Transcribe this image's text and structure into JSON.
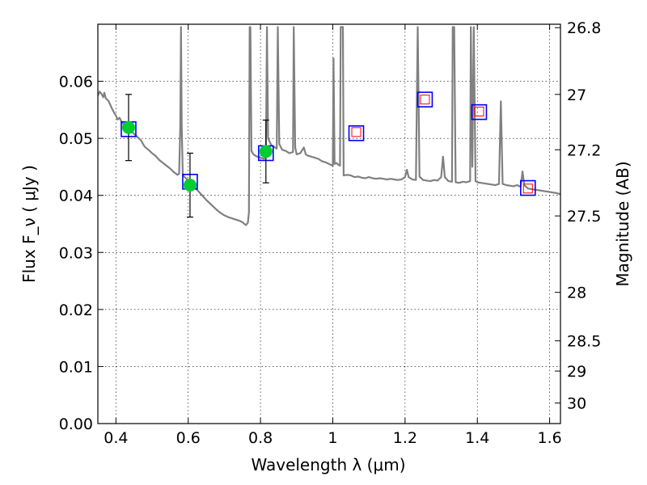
{
  "chart_data": {
    "type": "scatter",
    "xlabel": "Wavelength  λ (μm)",
    "ylabel": "Flux  F_ν  ( μJy )",
    "ylabel_right": "Magnitude (AB)",
    "xlim": [
      0.35,
      1.63
    ],
    "ylim": [
      0.0,
      0.07
    ],
    "grid": true,
    "x_ticks": [
      0.4,
      0.6,
      0.8,
      1.0,
      1.2,
      1.4,
      1.6
    ],
    "x_tick_labels": [
      "0.4",
      "0.6",
      "0.8",
      "1",
      "1.2",
      "1.4",
      "1.6"
    ],
    "y_ticks": [
      0.0,
      0.01,
      0.02,
      0.03,
      0.04,
      0.05,
      0.06
    ],
    "y_tick_labels": [
      "0.00",
      "0.01",
      "0.02",
      "0.03",
      "0.04",
      "0.05",
      "0.06"
    ],
    "right_ticks": [
      {
        "label": "26.8",
        "flux": 0.0694
      },
      {
        "label": "27",
        "flux": 0.0577
      },
      {
        "label": "27.2",
        "flux": 0.048
      },
      {
        "label": "27.5",
        "flux": 0.0364
      },
      {
        "label": "28",
        "flux": 0.023
      },
      {
        "label": "28.5",
        "flux": 0.0145
      },
      {
        "label": "29",
        "flux": 0.0092
      },
      {
        "label": "30",
        "flux": 0.0036
      }
    ],
    "series": [
      {
        "kind": "model_spectrum",
        "color": "#808080",
        "points": [
          [
            0.35,
            0.0575
          ],
          [
            0.355,
            0.0582
          ],
          [
            0.36,
            0.0578
          ],
          [
            0.365,
            0.0572
          ],
          [
            0.368,
            0.058
          ],
          [
            0.372,
            0.057
          ],
          [
            0.376,
            0.0568
          ],
          [
            0.38,
            0.0565
          ],
          [
            0.385,
            0.0558
          ],
          [
            0.39,
            0.0551
          ],
          [
            0.395,
            0.0545
          ],
          [
            0.4,
            0.054
          ],
          [
            0.405,
            0.0533
          ],
          [
            0.41,
            0.0536
          ],
          [
            0.415,
            0.053
          ],
          [
            0.42,
            0.0525
          ],
          [
            0.43,
            0.052
          ],
          [
            0.44,
            0.0514
          ],
          [
            0.45,
            0.0508
          ],
          [
            0.46,
            0.0502
          ],
          [
            0.47,
            0.0496
          ],
          [
            0.475,
            0.049
          ],
          [
            0.48,
            0.0485
          ],
          [
            0.49,
            0.048
          ],
          [
            0.5,
            0.0474
          ],
          [
            0.51,
            0.0469
          ],
          [
            0.52,
            0.0462
          ],
          [
            0.53,
            0.0457
          ],
          [
            0.54,
            0.0452
          ],
          [
            0.55,
            0.0447
          ],
          [
            0.56,
            0.0441
          ],
          [
            0.57,
            0.0436
          ],
          [
            0.575,
            0.0438
          ],
          [
            0.578,
            0.052
          ],
          [
            0.58,
            0.0695
          ],
          [
            0.582,
            0.052
          ],
          [
            0.585,
            0.0436
          ],
          [
            0.59,
            0.0432
          ],
          [
            0.6,
            0.0426
          ],
          [
            0.61,
            0.0419
          ],
          [
            0.62,
            0.0413
          ],
          [
            0.63,
            0.0406
          ],
          [
            0.64,
            0.0399
          ],
          [
            0.65,
            0.0392
          ],
          [
            0.66,
            0.0386
          ],
          [
            0.67,
            0.038
          ],
          [
            0.68,
            0.0374
          ],
          [
            0.69,
            0.0369
          ],
          [
            0.7,
            0.0365
          ],
          [
            0.71,
            0.0362
          ],
          [
            0.72,
            0.036
          ],
          [
            0.73,
            0.0358
          ],
          [
            0.74,
            0.0356
          ],
          [
            0.75,
            0.0353
          ],
          [
            0.755,
            0.035
          ],
          [
            0.76,
            0.0348
          ],
          [
            0.765,
            0.0352
          ],
          [
            0.768,
            0.037
          ],
          [
            0.77,
            0.0695
          ],
          [
            0.772,
            0.0695
          ],
          [
            0.775,
            0.0478
          ],
          [
            0.78,
            0.0472
          ],
          [
            0.79,
            0.0468
          ],
          [
            0.8,
            0.0466
          ],
          [
            0.81,
            0.0464
          ],
          [
            0.815,
            0.0475
          ],
          [
            0.818,
            0.0695
          ],
          [
            0.821,
            0.05
          ],
          [
            0.83,
            0.0488
          ],
          [
            0.84,
            0.0484
          ],
          [
            0.845,
            0.0482
          ],
          [
            0.848,
            0.0695
          ],
          [
            0.852,
            0.049
          ],
          [
            0.86,
            0.048
          ],
          [
            0.87,
            0.0478
          ],
          [
            0.88,
            0.0474
          ],
          [
            0.89,
            0.0476
          ],
          [
            0.892,
            0.0695
          ],
          [
            0.896,
            0.0484
          ],
          [
            0.9,
            0.0472
          ],
          [
            0.91,
            0.0474
          ],
          [
            0.92,
            0.0484
          ],
          [
            0.925,
            0.0472
          ],
          [
            0.93,
            0.047
          ],
          [
            0.94,
            0.0468
          ],
          [
            0.95,
            0.0466
          ],
          [
            0.96,
            0.0464
          ],
          [
            0.97,
            0.046
          ],
          [
            0.98,
            0.0458
          ],
          [
            0.99,
            0.0455
          ],
          [
            1.0,
            0.0452
          ],
          [
            1.002,
            0.064
          ],
          [
            1.005,
            0.0455
          ],
          [
            1.01,
            0.0457
          ],
          [
            1.015,
            0.0454
          ],
          [
            1.02,
            0.0452
          ],
          [
            1.022,
            0.0695
          ],
          [
            1.026,
            0.0695
          ],
          [
            1.028,
            0.0695
          ],
          [
            1.03,
            0.0435
          ],
          [
            1.04,
            0.0436
          ],
          [
            1.05,
            0.0435
          ],
          [
            1.06,
            0.0432
          ],
          [
            1.07,
            0.0433
          ],
          [
            1.08,
            0.0431
          ],
          [
            1.09,
            0.043
          ],
          [
            1.1,
            0.0432
          ],
          [
            1.11,
            0.043
          ],
          [
            1.12,
            0.0429
          ],
          [
            1.13,
            0.043
          ],
          [
            1.14,
            0.0429
          ],
          [
            1.15,
            0.0428
          ],
          [
            1.16,
            0.0429
          ],
          [
            1.17,
            0.0428
          ],
          [
            1.18,
            0.0427
          ],
          [
            1.19,
            0.0428
          ],
          [
            1.2,
            0.0432
          ],
          [
            1.205,
            0.0445
          ],
          [
            1.21,
            0.0432
          ],
          [
            1.22,
            0.0428
          ],
          [
            1.23,
            0.0427
          ],
          [
            1.235,
            0.0695
          ],
          [
            1.24,
            0.0433
          ],
          [
            1.25,
            0.0427
          ],
          [
            1.26,
            0.0426
          ],
          [
            1.27,
            0.0425
          ],
          [
            1.28,
            0.0427
          ],
          [
            1.29,
            0.0426
          ],
          [
            1.3,
            0.0432
          ],
          [
            1.305,
            0.0468
          ],
          [
            1.31,
            0.0432
          ],
          [
            1.32,
            0.0425
          ],
          [
            1.33,
            0.0424
          ],
          [
            1.332,
            0.0695
          ],
          [
            1.336,
            0.0695
          ],
          [
            1.34,
            0.0423
          ],
          [
            1.35,
            0.0422
          ],
          [
            1.36,
            0.0424
          ],
          [
            1.37,
            0.0423
          ],
          [
            1.38,
            0.0425
          ],
          [
            1.382,
            0.0695
          ],
          [
            1.386,
            0.045
          ],
          [
            1.39,
            0.0695
          ],
          [
            1.395,
            0.0425
          ],
          [
            1.4,
            0.0423
          ],
          [
            1.42,
            0.0421
          ],
          [
            1.44,
            0.0419
          ],
          [
            1.45,
            0.0418
          ],
          [
            1.46,
            0.042
          ],
          [
            1.465,
            0.0565
          ],
          [
            1.47,
            0.042
          ],
          [
            1.48,
            0.0418
          ],
          [
            1.5,
            0.0416
          ],
          [
            1.51,
            0.0418
          ],
          [
            1.52,
            0.0415
          ],
          [
            1.525,
            0.0442
          ],
          [
            1.53,
            0.0418
          ],
          [
            1.54,
            0.0412
          ],
          [
            1.56,
            0.041
          ],
          [
            1.58,
            0.0408
          ],
          [
            1.6,
            0.0406
          ],
          [
            1.62,
            0.0404
          ],
          [
            1.63,
            0.0402
          ]
        ]
      },
      {
        "kind": "model_photometry_blue",
        "color": "#0000ff",
        "points": [
          [
            0.435,
            0.0516
          ],
          [
            0.605,
            0.0424
          ],
          [
            0.815,
            0.0474
          ],
          [
            1.065,
            0.0509
          ],
          [
            1.255,
            0.0568
          ],
          [
            1.405,
            0.0546
          ],
          [
            1.54,
            0.0413
          ]
        ]
      },
      {
        "kind": "model_photometry_red",
        "color": "#ff0000",
        "points": [
          [
            1.065,
            0.0511
          ],
          [
            1.255,
            0.0568
          ],
          [
            1.405,
            0.0547
          ],
          [
            1.54,
            0.0412
          ]
        ]
      },
      {
        "kind": "observed",
        "color": "#00cc33",
        "points": [
          {
            "x": 0.435,
            "y": 0.0519,
            "err": 0.0058
          },
          {
            "x": 0.605,
            "y": 0.0418,
            "err": 0.0056
          },
          {
            "x": 0.815,
            "y": 0.0477,
            "err": 0.0055
          }
        ]
      }
    ]
  }
}
